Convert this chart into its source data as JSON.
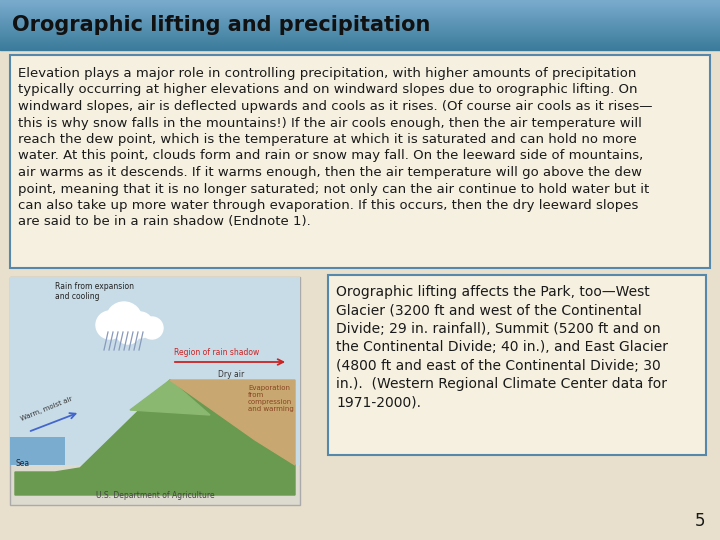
{
  "title": "Orographic lifting and precipitation",
  "title_bg_top": "#3a7a9a",
  "title_bg_bottom": "#78aac8",
  "title_text_color": "#111111",
  "slide_bg_color": "#e8e0cc",
  "main_para": "Elevation plays a major role in controlling precipitation, with higher amounts of precipitation\ntypically occurring at higher elevations and on windward slopes due to orographic lifting. On\nwindward slopes, air is deflected upwards and cools as it rises. (Of course air cools as it rises—\nthis is why snow falls in the mountains!) If the air cools enough, then the air temperature will\nreach the dew point, which is the temperature at which it is saturated and can hold no more\nwater. At this point, clouds form and rain or snow may fall. On the leeward side of mountains,\nair warms as it descends. If it warms enough, then the air temperature will go above the dew\npoint, meaning that it is no longer saturated; not only can the air continue to hold water but it\ncan also take up more water through evaporation. If this occurs, then the dry leeward slopes\nare said to be in a rain shadow (Endnote 1).",
  "text_box_border_color": "#5588aa",
  "text_box_bg_color": "#f5f0e0",
  "text_font_size": 9.5,
  "side_text": "Orographic lifting affects the Park, too—West\nGlacier (3200 ft and west of the Continental\nDivide; 29 in. rainfall), Summit (5200 ft and on\nthe Continental Divide; 40 in.), and East Glacier\n(4800 ft and east of the Continental Divide; 30\nin.).  (Western Regional Climate Center data for\n1971-2000).",
  "side_text_box_border_color": "#5588aa",
  "side_text_box_bg_color": "#f5f0e0",
  "side_text_font_size": 10,
  "page_number": "5"
}
